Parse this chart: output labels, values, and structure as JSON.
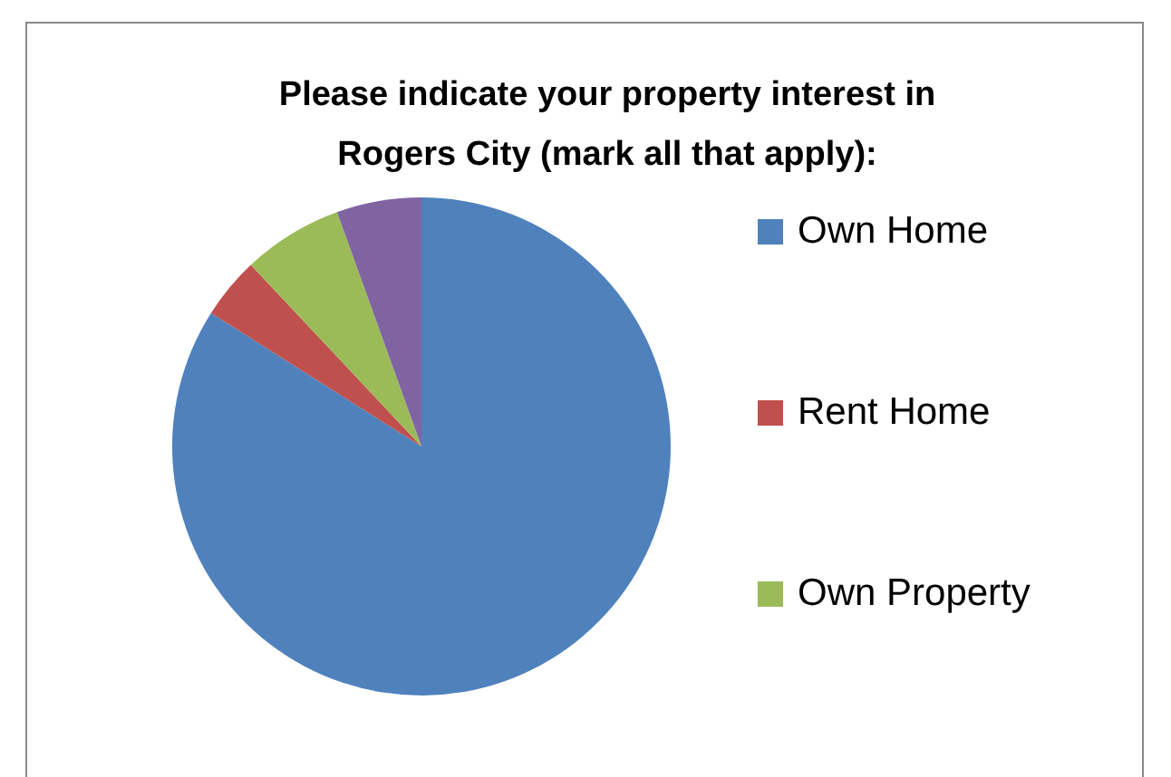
{
  "chart_data": {
    "type": "pie",
    "title": "Please indicate your property interest in Rogers City (mark all that apply):",
    "categories": [
      "Own Home",
      "Rent Home",
      "Own Property",
      null
    ],
    "values": [
      84,
      4,
      6.5,
      5.5
    ],
    "colors": [
      "#4f81bd",
      "#c0504d",
      "#9bbb59",
      "#8064a2"
    ],
    "legend": "right"
  }
}
